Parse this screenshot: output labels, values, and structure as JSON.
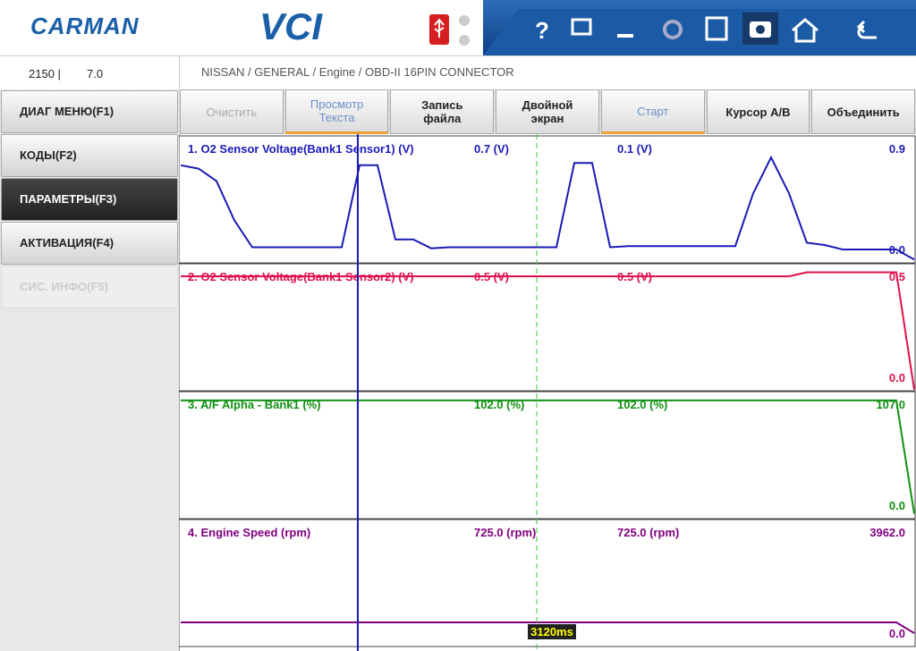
{
  "header": {
    "logo": "CARMAN",
    "product": "VCI"
  },
  "status": {
    "left": "2150 |",
    "right": "7.0"
  },
  "breadcrumb": "NISSAN / GENERAL / Engine / OBD-II 16PIN CONNECTOR",
  "menu": [
    {
      "label": "ДИАГ МЕНЮ(F1)",
      "state": "normal"
    },
    {
      "label": "КОДЫ(F2)",
      "state": "normal"
    },
    {
      "label": "ПАРАМЕТРЫ(F3)",
      "state": "active"
    },
    {
      "label": "АКТИВАЦИЯ(F4)",
      "state": "normal"
    },
    {
      "label": "СИС. ИНФО(F5)",
      "state": "disabled"
    }
  ],
  "buttons": [
    {
      "label": "Очистить",
      "state": "disabled"
    },
    {
      "label": "Просмотр Текста",
      "state": "selected"
    },
    {
      "label": "Запись файла",
      "state": "normal"
    },
    {
      "label": "Двойной экран",
      "state": "normal"
    },
    {
      "label": "Старт",
      "state": "selected"
    },
    {
      "label": "Курсор A/B",
      "state": "normal"
    },
    {
      "label": "Объединить",
      "state": "normal"
    }
  ],
  "panels": [
    {
      "name": "1. O2 Sensor Voltage(Bank1 Sensor1) (V)",
      "cursor_a": "0.7 (V)",
      "cursor_b": "0.1 (V)",
      "color": "#1a1ab8",
      "ymax": {
        "value": 0.9,
        "label": "0.9"
      },
      "ymin": {
        "value": 0,
        "label": "0.0"
      },
      "values": [
        0.75,
        0.72,
        0.61,
        0.26,
        0.02,
        0.02,
        0.02,
        0.02,
        0.02,
        0.02,
        0.75,
        0.75,
        0.09,
        0.09,
        0.01,
        0.02,
        0.02,
        0.02,
        0.02,
        0.02,
        0.02,
        0.02,
        0.77,
        0.77,
        0.02,
        0.03,
        0.03,
        0.03,
        0.03,
        0.03,
        0.03,
        0.03,
        0.5,
        0.82,
        0.5,
        0.06,
        0.04,
        0,
        0,
        0,
        0,
        -0.09
      ]
    },
    {
      "name": "2. O2 Sensor Voltage(Bank1 Sensor2) (V)",
      "cursor_a": "0.5 (V)",
      "cursor_b": "0.5 (V)",
      "color": "#e0104a",
      "ymax": {
        "value": 0.5,
        "label": "0.5"
      },
      "ymin": {
        "value": 0,
        "label": "0.0"
      },
      "values": [
        0.5,
        0.5,
        0.5,
        0.5,
        0.5,
        0.5,
        0.5,
        0.5,
        0.5,
        0.5,
        0.5,
        0.5,
        0.5,
        0.5,
        0.5,
        0.5,
        0.5,
        0.5,
        0.5,
        0.5,
        0.5,
        0.5,
        0.5,
        0.5,
        0.5,
        0.5,
        0.5,
        0.5,
        0.5,
        0.5,
        0.5,
        0.5,
        0.5,
        0.5,
        0.5,
        0.52,
        0.52,
        0.52,
        0.52,
        0.52,
        0.52,
        -0.06
      ]
    },
    {
      "name": "3. A/F Alpha - Bank1 (%)",
      "cursor_a": "102.0 (%)",
      "cursor_b": "102.0 (%)",
      "color": "#109010",
      "ymax": {
        "value": 107,
        "label": "107.0"
      },
      "ymin": {
        "value": 0,
        "label": "0.0"
      },
      "values": [
        111,
        111,
        111,
        111,
        111,
        111,
        111,
        111,
        111,
        111,
        111,
        111,
        111,
        111,
        111,
        111,
        111,
        111,
        111,
        111,
        111,
        111,
        111,
        111,
        111,
        111,
        111,
        111,
        111,
        111,
        111,
        111,
        111,
        111,
        111,
        111,
        111,
        111,
        111,
        111,
        111,
        -9
      ]
    },
    {
      "name": "4. Engine Speed (rpm)",
      "cursor_a": "725.0 (rpm)",
      "cursor_b": "725.0 (rpm)",
      "color": "#800080",
      "ymax": {
        "value": 3962,
        "label": "3962.0"
      },
      "ymin": {
        "value": 0,
        "label": "0.0"
      },
      "values": [
        420,
        420,
        420,
        420,
        420,
        420,
        420,
        420,
        420,
        420,
        420,
        420,
        420,
        420,
        420,
        420,
        420,
        420,
        420,
        420,
        420,
        420,
        420,
        420,
        420,
        420,
        420,
        420,
        420,
        420,
        420,
        420,
        420,
        420,
        420,
        420,
        420,
        420,
        420,
        420,
        420,
        0
      ]
    }
  ],
  "cursor_time": "3120ms"
}
